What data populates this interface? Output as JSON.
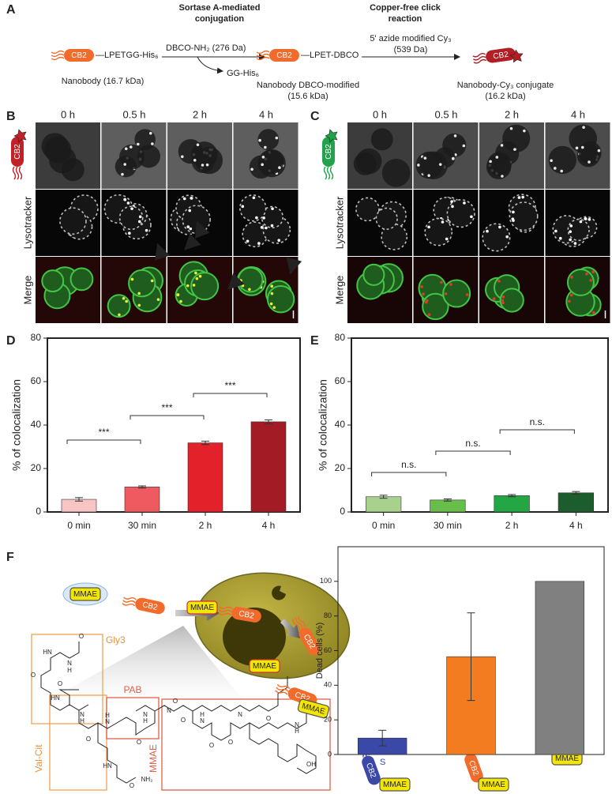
{
  "panel_labels": [
    "A",
    "B",
    "C",
    "D",
    "E",
    "F"
  ],
  "scheme_a": {
    "step1_title": [
      "Sortase A-mediated",
      "conjugation"
    ],
    "step2_title": [
      "Copper-free click",
      "reaction"
    ],
    "cb2": "CB2",
    "tag1": "—LPETGG-His₆",
    "reagent1": "DBCO-NH₂ (276 Da)",
    "byproduct": "GG-His₆",
    "tag2": "—LPET-DBCO",
    "reagent2": [
      "5' azide modified Cy₃",
      "(539 Da)"
    ],
    "product0": "Nanobody (16.7 kDa)",
    "product1": [
      "Nanobody DBCO-modified",
      "(15.6 kDa)"
    ],
    "product2": [
      "Nanobody-Cy₃ conjugate",
      "(16.2 kDa)"
    ]
  },
  "microscopy": {
    "times": [
      "0 h",
      "0.5 h",
      "2 h",
      "4 h"
    ],
    "rows": [
      "Lysotracker",
      "Merge"
    ],
    "cb2": "CB2"
  },
  "scheme_f": {
    "mmae": "MMAE",
    "cb2": "CB2",
    "s": "S",
    "linker_parts": [
      "Gly3",
      "PAB",
      "Val-Cit",
      "MMAE"
    ],
    "atoms": [
      "O",
      "HN",
      "N",
      "H",
      "O",
      "HN",
      "O",
      "N",
      "H",
      "H",
      "N",
      "O",
      "HN",
      "NH₂",
      "O",
      "N",
      "H",
      "O",
      "O",
      "N",
      "O",
      "H",
      "N",
      "O",
      "N",
      "O",
      "O",
      "OH",
      "N",
      "H"
    ]
  },
  "chart_data": [
    {
      "type": "bar",
      "ylabel": "% of colocalization",
      "categories": [
        "0 min",
        "30 min",
        "2 h",
        "4 h"
      ],
      "values": [
        5.8,
        11.5,
        31.8,
        41.5
      ],
      "errors": [
        0.8,
        0.5,
        0.8,
        0.9
      ],
      "colors": [
        "#f8c4c4",
        "#ee5a5f",
        "#e2212b",
        "#a31b24"
      ],
      "ylim": [
        0,
        80
      ],
      "yticks": [
        0,
        20,
        40,
        60,
        80
      ],
      "annotations": [
        "***",
        "***",
        "***"
      ]
    },
    {
      "type": "bar",
      "ylabel": "% of colocalization",
      "categories": [
        "0 min",
        "30 min",
        "2 h",
        "4 h"
      ],
      "values": [
        7,
        5.5,
        7.5,
        8.8
      ],
      "errors": [
        0.7,
        0.5,
        0.5,
        0.6
      ],
      "colors": [
        "#a8d18d",
        "#68be4a",
        "#25a644",
        "#1d5c2c"
      ],
      "ylim": [
        0,
        80
      ],
      "yticks": [
        0,
        20,
        40,
        60,
        80
      ],
      "annotations": [
        "n.s.",
        "n.s.",
        "n.s."
      ]
    },
    {
      "type": "bar",
      "ylabel": "Dead cells (%)",
      "values": [
        9.5,
        56.5,
        100
      ],
      "errors": [
        4.5,
        25.3,
        null
      ],
      "colors": [
        "#3a48a8",
        "#f47c20",
        "#808080"
      ],
      "ylim": [
        0,
        120
      ],
      "yticks": [
        0,
        20,
        40,
        60,
        80,
        100
      ]
    }
  ]
}
